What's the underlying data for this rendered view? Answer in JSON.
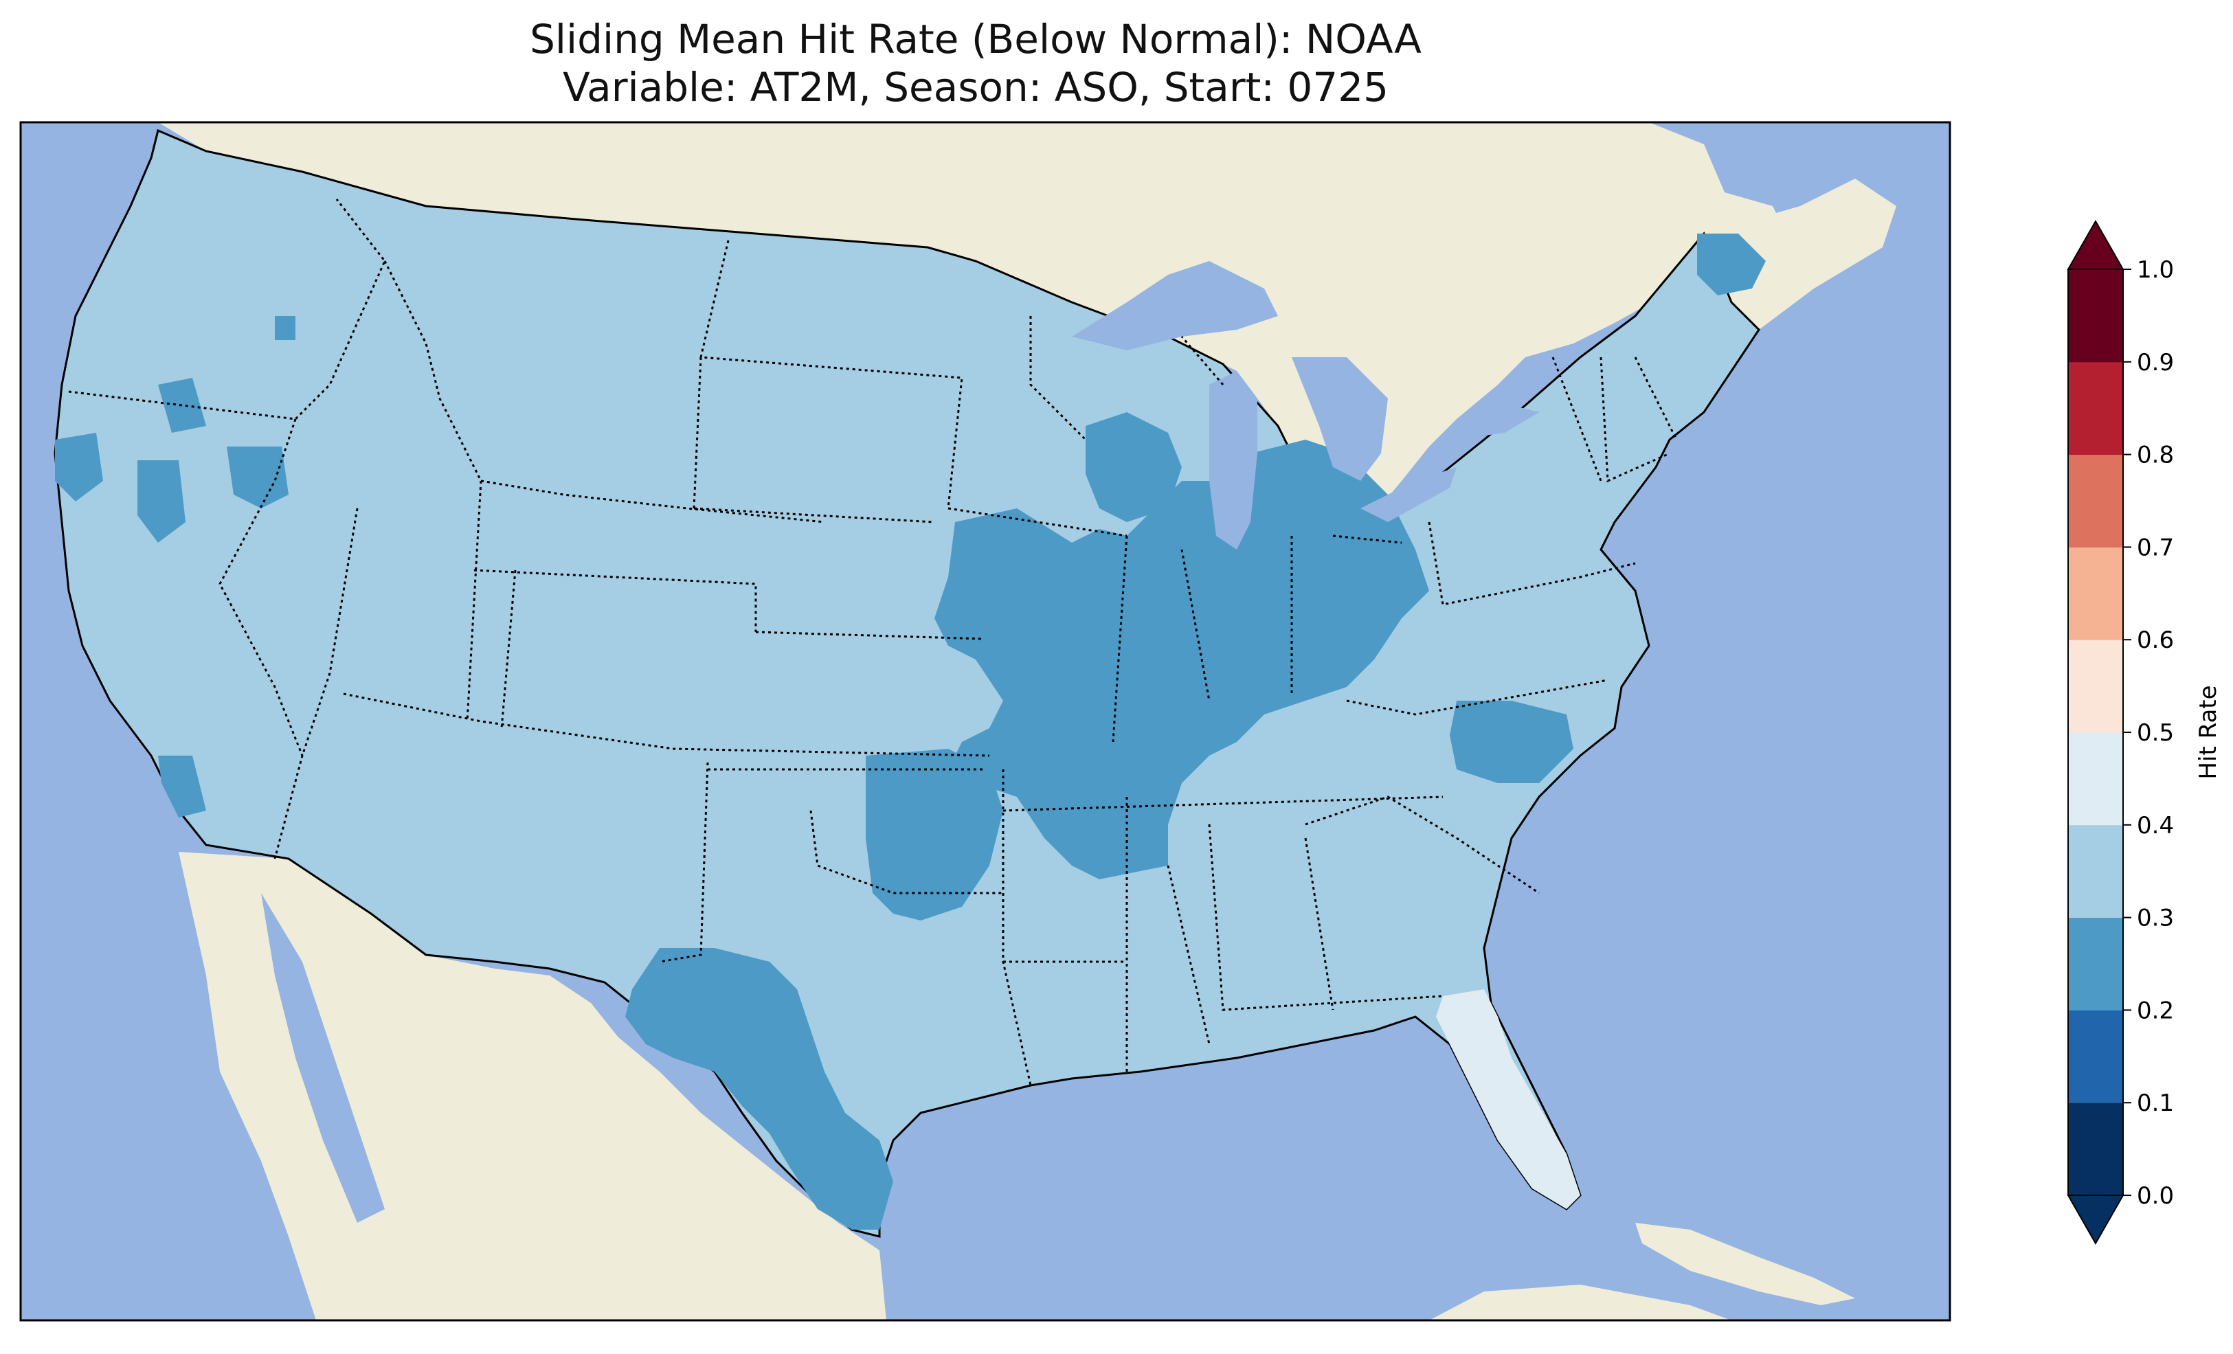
{
  "title": {
    "line1": "Sliding Mean Hit Rate (Below Normal): NOAA",
    "line2": "Variable: AT2M, Season: ASO, Start: 0725"
  },
  "colors": {
    "ocean": "#95b4e1",
    "land": "#efedda",
    "lake": "#95b4e1",
    "border": "#000000",
    "bin_0_1": "#053061",
    "bin_1_2": "#2166ac",
    "bin_2_3": "#4d9ac7",
    "bin_3_4": "#a5cde3",
    "bin_4_5": "#e0ecf3",
    "bin_5_6": "#fbe5d9",
    "bin_6_7": "#f5b394",
    "bin_7_8": "#dd735f",
    "bin_8_9": "#b4202f",
    "bin_9_10": "#67001f"
  },
  "legend": {
    "label": "Hit Rate",
    "ticks": [
      "0.0",
      "0.1",
      "0.2",
      "0.3",
      "0.4",
      "0.5",
      "0.6",
      "0.7",
      "0.8",
      "0.9",
      "1.0"
    ]
  },
  "map_data": {
    "background_hit_rate_bin": "0.3-0.4",
    "regions": [
      {
        "name": "Great Lakes / Midwest / Mississippi Valley",
        "hit_rate_bin": "0.2-0.3"
      },
      {
        "name": "Texas (central/south)",
        "hit_rate_bin": "0.2-0.3"
      },
      {
        "name": "Oklahoma (southern)",
        "hit_rate_bin": "0.2-0.3"
      },
      {
        "name": "North Carolina (central)",
        "hit_rate_bin": "0.2-0.3"
      },
      {
        "name": "Northern Maine",
        "hit_rate_bin": "0.2-0.3"
      },
      {
        "name": "Northern California / Nevada patches",
        "hit_rate_bin": "0.2-0.3"
      },
      {
        "name": "Southern California coast",
        "hit_rate_bin": "0.2-0.3"
      },
      {
        "name": "Florida peninsula",
        "hit_rate_bin": "0.4-0.5"
      }
    ]
  }
}
